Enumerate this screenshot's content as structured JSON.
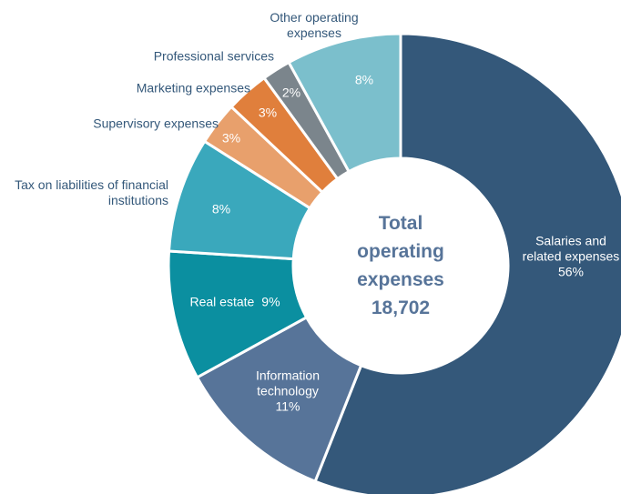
{
  "chart_data": {
    "type": "pie",
    "categories": [
      "Salaries and related expenses",
      "Information technology",
      "Real estate",
      "Tax on liabilities of financial institutions",
      "Supervisory expenses",
      "Marketing expenses",
      "Professional services",
      "Other operating expenses"
    ],
    "values": [
      56,
      11,
      9,
      8,
      3,
      3,
      2,
      8
    ],
    "value_labels": [
      "56%",
      "11%",
      "9%",
      "8%",
      "3%",
      "3%",
      "2%",
      "8%"
    ],
    "colors": [
      "#34587a",
      "#577499",
      "#0b8fa0",
      "#3aa8bc",
      "#e8a06c",
      "#e07f3c",
      "#7b858c",
      "#7bbfcc"
    ],
    "center_lines": [
      "Total",
      "operating",
      "expenses",
      "18,702"
    ]
  }
}
